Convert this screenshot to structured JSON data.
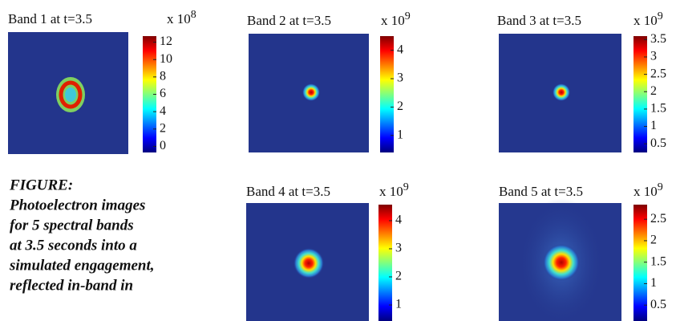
{
  "panels": [
    {
      "title": "Band 1 at t=3.5",
      "scale_base": "x 10",
      "scale_exponent": "8",
      "colorbar_ticks": [
        0,
        2,
        4,
        6,
        8,
        10,
        12
      ],
      "colorbar_lim": [
        -0.7,
        12.7
      ]
    },
    {
      "title": "Band 2 at t=3.5",
      "scale_base": "x 10",
      "scale_exponent": "9",
      "colorbar_ticks": [
        1,
        2,
        3,
        4
      ],
      "colorbar_lim": [
        0.4,
        4.5
      ]
    },
    {
      "title": "Band 3 at t=3.5",
      "scale_base": "x 10",
      "scale_exponent": "9",
      "colorbar_ticks": [
        0.5,
        1,
        1.5,
        2,
        2.5,
        3,
        3.5
      ],
      "colorbar_lim": [
        0.25,
        3.6
      ]
    },
    {
      "title": "Band 4 at t=3.5",
      "scale_base": "x 10",
      "scale_exponent": "9",
      "colorbar_ticks": [
        1,
        2,
        3,
        4
      ],
      "colorbar_lim": [
        0.43,
        4.57
      ]
    },
    {
      "title": "Band 5 at t=3.5",
      "scale_base": "x 10",
      "scale_exponent": "9",
      "colorbar_ticks": [
        0.5,
        1,
        1.5,
        2,
        2.5
      ],
      "colorbar_lim": [
        0.13,
        2.84
      ]
    }
  ],
  "caption": [
    "FIGURE:",
    "Photoelectron images",
    "for 5 spectral bands",
    "at 3.5 seconds into a",
    "simulated engagement,",
    "reflected in-band in"
  ]
}
